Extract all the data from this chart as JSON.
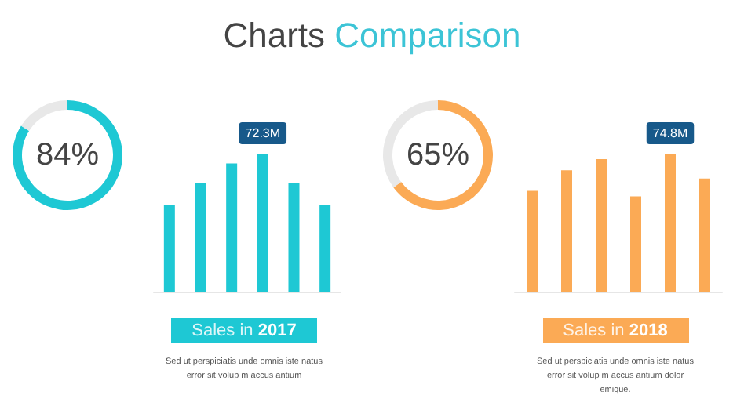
{
  "chart_data": [
    {
      "type": "other",
      "title": "Charts Comparison"
    },
    {
      "type": "donut",
      "categories": [
        null,
        null
      ],
      "values": [
        84,
        16
      ],
      "colors": [
        "#1ec8d4",
        "#e8e8e8"
      ],
      "annotations": [
        "84%"
      ]
    },
    {
      "type": "bar",
      "title": "Sales in 2017",
      "annotations": [
        "Sed ut perspiciatis unde omnis iste natus error sit volup m accus antium"
      ],
      "categories": [
        null,
        null,
        null,
        null,
        null,
        null
      ],
      "color": "#1ec8d4",
      "values": [
        45.5,
        57.1,
        67.2,
        72.3,
        57.1,
        45.5
      ],
      "value_labels": [
        null,
        null,
        null,
        "72.3M",
        null,
        null
      ]
    },
    {
      "type": "donut",
      "categories": [
        null,
        null
      ],
      "values": [
        65,
        35
      ],
      "colors": [
        "#fbaa55",
        "#e8e8e8"
      ],
      "annotations": [
        "65%"
      ]
    },
    {
      "type": "bar",
      "title": "Sales in 2018",
      "annotations": [
        "Sed ut perspiciatis unde omnis iste natus error sit volup m accus antium dolor emique."
      ],
      "categories": [
        null,
        null,
        null,
        null,
        null,
        null
      ],
      "color": "#fbaa55",
      "values": [
        54.6,
        65.8,
        71.8,
        51.6,
        74.8,
        61.3
      ],
      "value_labels": [
        null,
        null,
        null,
        null,
        "74.8M",
        null
      ]
    }
  ]
}
